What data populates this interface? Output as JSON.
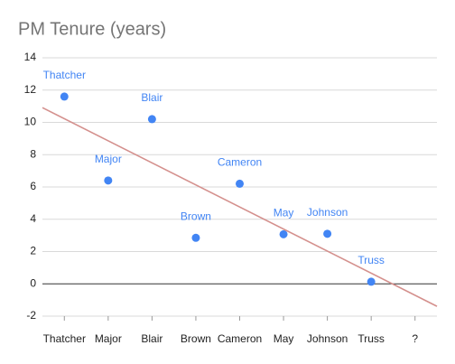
{
  "chart_data": {
    "type": "scatter",
    "title": "PM Tenure (years)",
    "categories": [
      "Thatcher",
      "Major",
      "Blair",
      "Brown",
      "Cameron",
      "May",
      "Johnson",
      "Truss",
      "?"
    ],
    "values": [
      11.6,
      6.4,
      10.2,
      2.85,
      6.2,
      3.07,
      3.1,
      0.13,
      null
    ],
    "color": "#4285f4",
    "trendline": "linear",
    "trendline_color": "#d4908d",
    "ylim": [
      -2,
      14
    ],
    "yticks": [
      -2,
      0,
      2,
      4,
      6,
      8,
      10,
      12,
      14
    ],
    "grid": true
  }
}
